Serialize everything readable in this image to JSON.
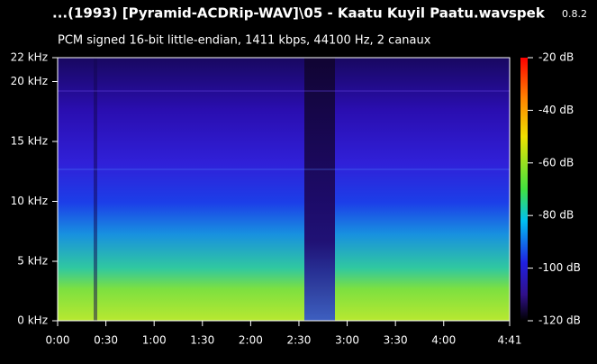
{
  "header": {
    "title": "...(1993) [Pyramid-ACDRip-WAV]\\05 - Kaatu Kuyil Paatu.wav",
    "app": "spek",
    "version": "0.8.2",
    "subtitle": "PCM signed 16-bit little-endian, 1411 kbps, 44100 Hz, 2 canaux"
  },
  "frequency_axis": {
    "labels": [
      "22 kHz",
      "20 kHz",
      "15 kHz",
      "10 kHz",
      "5 kHz",
      "0 kHz"
    ]
  },
  "time_axis": {
    "labels": [
      "0:00",
      "0:30",
      "1:00",
      "1:30",
      "2:00",
      "2:30",
      "3:00",
      "3:30",
      "4:00",
      "4:41"
    ]
  },
  "level_scale": {
    "labels": [
      "-20 dB",
      "-40 dB",
      "-60 dB",
      "-80 dB",
      "-100 dB",
      "-120 dB"
    ]
  }
}
